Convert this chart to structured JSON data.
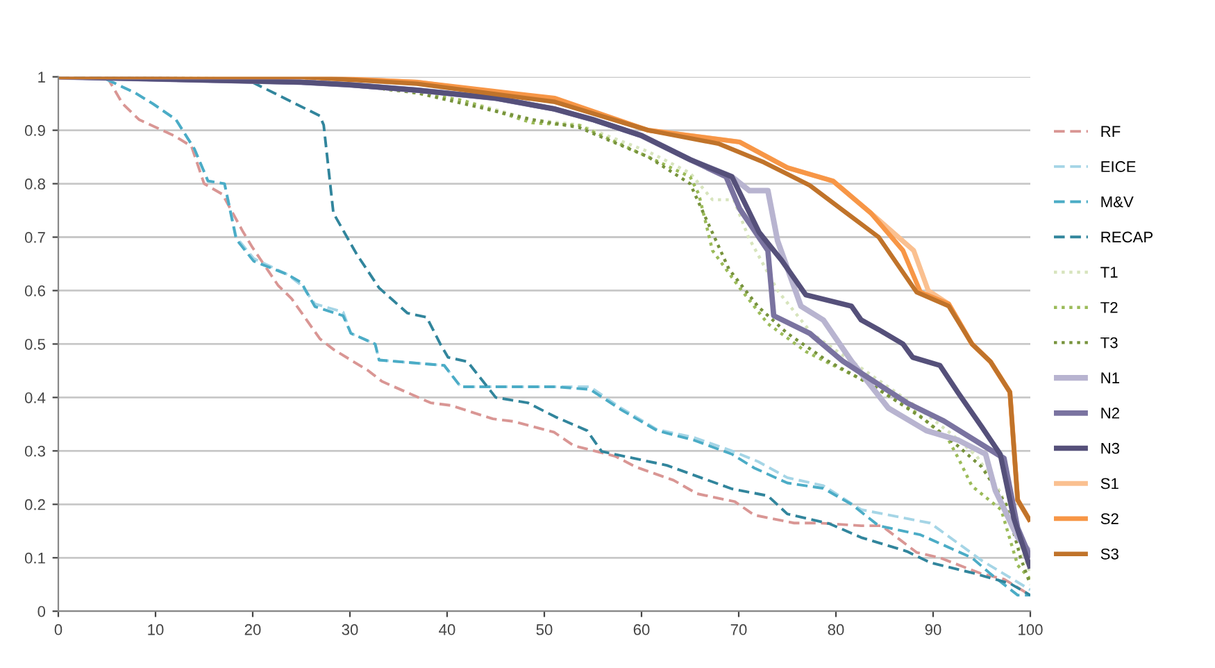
{
  "chart_data": {
    "type": "line",
    "xlim": [
      0,
      100
    ],
    "ylim": [
      0,
      1
    ],
    "xticks": [
      0,
      10,
      20,
      30,
      40,
      50,
      60,
      70,
      80,
      90,
      100
    ],
    "yticks": [
      0,
      0.1,
      0.2,
      0.3,
      0.4,
      0.5,
      0.6,
      0.7,
      0.8,
      0.9,
      1
    ],
    "grid": "y",
    "legend": "right",
    "marker": "none",
    "series": [
      {
        "name": "RF",
        "color": "#d99694",
        "line_style": "dashed",
        "x": [
          0,
          5,
          6.6,
          8.3,
          11.9,
          13.7,
          15,
          16.9,
          19,
          20,
          22.6,
          24,
          26.9,
          28.3,
          31.9,
          33.3,
          38.3,
          40.4,
          44.7,
          46.9,
          51,
          53,
          57.3,
          59.4,
          63.3,
          65.7,
          69.6,
          71.6,
          75.7,
          78.3,
          82.6,
          84.7,
          88.3,
          90.7,
          95,
          97.3,
          100
        ],
        "values": [
          1,
          1,
          0.95,
          0.92,
          0.89,
          0.87,
          0.8,
          0.78,
          0.71,
          0.68,
          0.61,
          0.585,
          0.51,
          0.49,
          0.45,
          0.43,
          0.39,
          0.385,
          0.36,
          0.355,
          0.335,
          0.31,
          0.29,
          0.27,
          0.245,
          0.22,
          0.205,
          0.18,
          0.165,
          0.165,
          0.16,
          0.16,
          0.11,
          0.1,
          0.07,
          0.06,
          0.03
        ]
      },
      {
        "name": "EICE",
        "color": "#a5d5e6",
        "line_style": "dashed",
        "x": [
          0,
          4.4,
          7.9,
          9.7,
          12.1,
          14,
          15.4,
          17.1,
          18.3,
          20.1,
          23.6,
          25,
          26.4,
          29.3,
          30.1,
          32.6,
          33,
          39.7,
          41.4,
          51.1,
          54.7,
          57.9,
          61.6,
          65.4,
          69.3,
          72,
          75,
          78.7,
          82.6,
          89.7,
          95,
          100
        ],
        "values": [
          1,
          1,
          0.97,
          0.95,
          0.92,
          0.865,
          0.805,
          0.8,
          0.7,
          0.66,
          0.63,
          0.61,
          0.575,
          0.56,
          0.52,
          0.5,
          0.47,
          0.46,
          0.42,
          0.42,
          0.42,
          0.38,
          0.34,
          0.325,
          0.3,
          0.28,
          0.25,
          0.235,
          0.19,
          0.165,
          0.095,
          0.04
        ]
      },
      {
        "name": "M&V",
        "color": "#4bacc6",
        "line_style": "dashed",
        "x": [
          0,
          4.4,
          7.9,
          9.7,
          12.1,
          14,
          15.4,
          17.1,
          18.3,
          20.1,
          23.6,
          25,
          26.4,
          29.3,
          30.1,
          32.6,
          33,
          39.7,
          41.4,
          51.1,
          54.7,
          57.9,
          61.6,
          65.4,
          69.3,
          71.6,
          75,
          78.7,
          81.6,
          84.4,
          88.7,
          94,
          95.9,
          98.7,
          100
        ],
        "values": [
          1,
          1,
          0.97,
          0.95,
          0.92,
          0.865,
          0.805,
          0.8,
          0.696,
          0.655,
          0.63,
          0.615,
          0.57,
          0.553,
          0.52,
          0.5,
          0.47,
          0.46,
          0.42,
          0.42,
          0.415,
          0.377,
          0.338,
          0.32,
          0.294,
          0.268,
          0.24,
          0.23,
          0.2,
          0.16,
          0.143,
          0.1,
          0.07,
          0.03,
          0.03
        ]
      },
      {
        "name": "RECAP",
        "color": "#31859c",
        "line_style": "dashed",
        "x": [
          0,
          19.4,
          22.6,
          26.9,
          27.3,
          28.3,
          30.7,
          33,
          35.9,
          37.9,
          39.3,
          40.1,
          42.1,
          45,
          48.3,
          51.1,
          54.4,
          55.9,
          62.6,
          69.3,
          73,
          75,
          79.3,
          82.6,
          87.3,
          89.7,
          94.4,
          97.9,
          100
        ],
        "values": [
          1,
          0.995,
          0.966,
          0.927,
          0.91,
          0.745,
          0.668,
          0.605,
          0.558,
          0.55,
          0.5,
          0.475,
          0.467,
          0.4,
          0.39,
          0.364,
          0.338,
          0.299,
          0.273,
          0.229,
          0.216,
          0.182,
          0.164,
          0.138,
          0.112,
          0.091,
          0.07,
          0.052,
          0.03
        ]
      },
      {
        "name": "T1",
        "color": "#d7e4bd",
        "line_style": "dotted",
        "x": [
          0,
          25,
          30,
          36.9,
          41.6,
          48.7,
          53.6,
          60.7,
          65,
          67.3,
          69.5,
          71,
          74,
          77.5,
          83,
          88.5,
          92,
          94.5,
          97,
          99,
          100
        ],
        "values": [
          1,
          0.995,
          0.985,
          0.97,
          0.956,
          0.92,
          0.91,
          0.86,
          0.82,
          0.77,
          0.77,
          0.7,
          0.6,
          0.52,
          0.45,
          0.38,
          0.33,
          0.29,
          0.22,
          0.12,
          0.07
        ]
      },
      {
        "name": "T2",
        "color": "#9bbb59",
        "line_style": "dotted",
        "x": [
          0,
          25,
          30,
          36.9,
          41.6,
          48.7,
          53.6,
          60.7,
          65,
          65.9,
          67.3,
          70.1,
          73,
          76.9,
          82.6,
          88.3,
          91.6,
          92.6,
          94,
          97,
          98.7,
          100
        ],
        "values": [
          1,
          0.995,
          0.985,
          0.97,
          0.956,
          0.914,
          0.909,
          0.85,
          0.813,
          0.78,
          0.675,
          0.605,
          0.538,
          0.486,
          0.434,
          0.371,
          0.32,
          0.286,
          0.234,
          0.19,
          0.086,
          0.06
        ]
      },
      {
        "name": "T3",
        "color": "#77933c",
        "line_style": "dotted",
        "x": [
          0,
          25,
          30,
          36.9,
          41.6,
          48.7,
          53.6,
          60.7,
          65,
          67,
          69,
          72,
          75,
          79,
          84,
          89,
          92.5,
          95,
          97.5,
          99,
          100
        ],
        "values": [
          1,
          0.995,
          0.985,
          0.97,
          0.95,
          0.92,
          0.905,
          0.85,
          0.8,
          0.72,
          0.64,
          0.57,
          0.52,
          0.47,
          0.42,
          0.36,
          0.31,
          0.27,
          0.2,
          0.1,
          0.05
        ]
      },
      {
        "name": "N1",
        "color": "#b8b4d0",
        "line_style": "solid",
        "x": [
          0,
          25,
          30,
          36.9,
          45,
          51,
          55,
          60,
          65,
          69.3,
          71.1,
          73,
          74,
          76.4,
          78.7,
          81.6,
          85.4,
          89.3,
          92.6,
          95.4,
          96.4,
          98.7,
          100
        ],
        "values": [
          1,
          0.99,
          0.985,
          0.975,
          0.96,
          0.94,
          0.92,
          0.89,
          0.845,
          0.813,
          0.787,
          0.787,
          0.693,
          0.571,
          0.545,
          0.468,
          0.38,
          0.338,
          0.32,
          0.294,
          0.226,
          0.138,
          0.11
        ]
      },
      {
        "name": "N2",
        "color": "#7a73a0",
        "line_style": "solid",
        "x": [
          0,
          25,
          30,
          36.9,
          45,
          51,
          55,
          60,
          65,
          68.7,
          70.1,
          73,
          73.6,
          77.3,
          80.7,
          87.3,
          91.1,
          95,
          97.3,
          98.7,
          100
        ],
        "values": [
          1,
          0.99,
          0.985,
          0.975,
          0.96,
          0.94,
          0.92,
          0.89,
          0.845,
          0.813,
          0.753,
          0.675,
          0.553,
          0.52,
          0.468,
          0.39,
          0.356,
          0.312,
          0.286,
          0.156,
          0.1
        ]
      },
      {
        "name": "N3",
        "color": "#55507a",
        "line_style": "solid",
        "x": [
          0,
          25,
          30,
          36.9,
          45,
          51,
          55,
          60,
          65,
          69.3,
          72.1,
          74.4,
          76.9,
          81.6,
          82.6,
          84.4,
          86.9,
          87.9,
          90.7,
          92.6,
          95,
          96.9,
          98.3,
          100
        ],
        "values": [
          1,
          0.99,
          0.985,
          0.975,
          0.96,
          0.94,
          0.92,
          0.89,
          0.845,
          0.813,
          0.709,
          0.657,
          0.592,
          0.571,
          0.545,
          0.527,
          0.5,
          0.475,
          0.46,
          0.408,
          0.345,
          0.294,
          0.174,
          0.08
        ]
      },
      {
        "name": "S1",
        "color": "#fac090",
        "line_style": "solid",
        "x": [
          0,
          25,
          36.9,
          51.1,
          60.7,
          70.1,
          75,
          79.7,
          83.6,
          88,
          89.5,
          91.6,
          94,
          95.9,
          97.9,
          98.7,
          100
        ],
        "values": [
          1,
          1,
          0.99,
          0.955,
          0.9,
          0.878,
          0.83,
          0.805,
          0.745,
          0.675,
          0.6,
          0.575,
          0.5,
          0.467,
          0.41,
          0.208,
          0.168
        ]
      },
      {
        "name": "S2",
        "color": "#f79646",
        "line_style": "solid",
        "x": [
          0,
          25,
          36.9,
          51.1,
          60.7,
          70.1,
          75,
          79.7,
          83.6,
          86.9,
          88.7,
          91.6,
          94,
          95.9,
          97.9,
          98.7,
          100
        ],
        "values": [
          1,
          1,
          0.99,
          0.96,
          0.9,
          0.878,
          0.83,
          0.805,
          0.745,
          0.675,
          0.597,
          0.575,
          0.5,
          0.467,
          0.41,
          0.208,
          0.168
        ]
      },
      {
        "name": "S3",
        "color": "#c0732a",
        "line_style": "solid",
        "x": [
          0,
          25,
          36.9,
          51.1,
          60.7,
          67.9,
          72.6,
          77.3,
          81.1,
          84.4,
          88.3,
          91.6,
          94,
          95.9,
          97.9,
          98.7,
          100
        ],
        "values": [
          1,
          1,
          0.987,
          0.953,
          0.9,
          0.875,
          0.84,
          0.797,
          0.745,
          0.7,
          0.597,
          0.571,
          0.5,
          0.467,
          0.41,
          0.208,
          0.168
        ]
      }
    ]
  }
}
